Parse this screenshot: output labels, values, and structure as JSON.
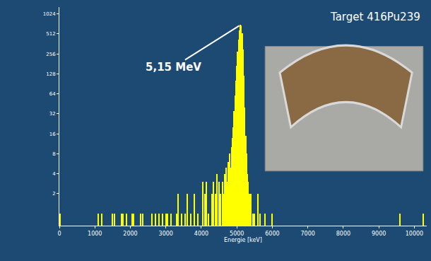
{
  "chart_data": {
    "type": "bar",
    "x_label": "Energie [keV]",
    "color": "#ffff00",
    "log": "y",
    "grid": false,
    "x": [
      20,
      1100,
      1200,
      1500,
      1550,
      1750,
      1800,
      1900,
      2050,
      2100,
      2300,
      2350,
      2600,
      2700,
      2800,
      2900,
      3000,
      3050,
      3150,
      3300,
      3350,
      3450,
      3550,
      3600,
      3700,
      3800,
      3900,
      4050,
      4100,
      4150,
      4200,
      4300,
      4350,
      4400,
      4450,
      4500,
      4550,
      4600,
      4625,
      4650,
      4675,
      4700,
      4725,
      4750,
      4775,
      4800,
      4825,
      4850,
      4875,
      4900,
      4925,
      4950,
      4975,
      5000,
      5025,
      5050,
      5075,
      5100,
      5125,
      5150,
      5175,
      5200,
      5225,
      5250,
      5275,
      5300,
      5325,
      5350,
      5375,
      5400,
      5450,
      5500,
      5600,
      5650,
      5800,
      6000,
      9600,
      10250
    ],
    "values": [
      1,
      1,
      1,
      1,
      1,
      1,
      1,
      1,
      1,
      1,
      1,
      1,
      1,
      1,
      1,
      1,
      1,
      1,
      1,
      1,
      2,
      1,
      1,
      2,
      1,
      2,
      1,
      3,
      2,
      3,
      1,
      2,
      3,
      2,
      4,
      3,
      2,
      3,
      2,
      4,
      2,
      5,
      3,
      6,
      4,
      8,
      5,
      10,
      14,
      20,
      35,
      60,
      100,
      170,
      280,
      420,
      580,
      700,
      680,
      520,
      300,
      120,
      40,
      15,
      8,
      4,
      3,
      2,
      1,
      2,
      1,
      1,
      2,
      1,
      1,
      1,
      1,
      1
    ],
    "xlim": [
      0,
      10350
    ],
    "xticks": [
      0,
      1000,
      2000,
      3000,
      4000,
      5000,
      6000,
      7000,
      8000,
      9000,
      10000
    ],
    "ylim": [
      0.66,
      1300
    ],
    "yticks": [
      2,
      4,
      8,
      16,
      32,
      64,
      128,
      256,
      512,
      1024
    ],
    "annotations": [
      {
        "text": "5,15 MeV",
        "x": 5100,
        "y": 700
      },
      {
        "text": "Target 416Pu239"
      }
    ]
  }
}
